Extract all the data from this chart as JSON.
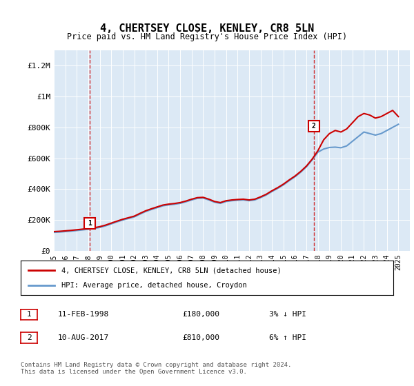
{
  "title": "4, CHERTSEY CLOSE, KENLEY, CR8 5LN",
  "subtitle": "Price paid vs. HM Land Registry's House Price Index (HPI)",
  "legend_line1": "4, CHERTSEY CLOSE, KENLEY, CR8 5LN (detached house)",
  "legend_line2": "HPI: Average price, detached house, Croydon",
  "transaction1_label": "1",
  "transaction1_date": "11-FEB-1998",
  "transaction1_price": "£180,000",
  "transaction1_hpi": "3% ↓ HPI",
  "transaction2_label": "2",
  "transaction2_date": "10-AUG-2017",
  "transaction2_price": "£810,000",
  "transaction2_hpi": "6% ↑ HPI",
  "footer": "Contains HM Land Registry data © Crown copyright and database right 2024.\nThis data is licensed under the Open Government Licence v3.0.",
  "ylim": [
    0,
    1300000
  ],
  "yticks": [
    0,
    200000,
    400000,
    600000,
    800000,
    1000000,
    1200000
  ],
  "ytick_labels": [
    "£0",
    "£200K",
    "£400K",
    "£600K",
    "£800K",
    "£1M",
    "£1.2M"
  ],
  "bg_color": "#dce9f5",
  "plot_bg": "#dce9f5",
  "red_color": "#cc0000",
  "blue_color": "#6699cc",
  "marker1_x": 1998.12,
  "marker2_x": 2017.62,
  "marker1_y": 180000,
  "marker2_y": 810000,
  "xmin": 1995,
  "xmax": 2026,
  "hpi_years": [
    1995,
    1995.5,
    1996,
    1996.5,
    1997,
    1997.5,
    1998,
    1998.5,
    1999,
    1999.5,
    2000,
    2000.5,
    2001,
    2001.5,
    2002,
    2002.5,
    2003,
    2003.5,
    2004,
    2004.5,
    2005,
    2005.5,
    2006,
    2006.5,
    2007,
    2007.5,
    2008,
    2008.5,
    2009,
    2009.5,
    2010,
    2010.5,
    2011,
    2011.5,
    2012,
    2012.5,
    2013,
    2013.5,
    2014,
    2014.5,
    2015,
    2015.5,
    2016,
    2016.5,
    2017,
    2017.5,
    2018,
    2018.5,
    2019,
    2019.5,
    2020,
    2020.5,
    2021,
    2021.5,
    2022,
    2022.5,
    2023,
    2023.5,
    2024,
    2024.5,
    2025
  ],
  "hpi_values": [
    120000,
    122000,
    125000,
    128000,
    132000,
    136000,
    140000,
    145000,
    152000,
    162000,
    175000,
    188000,
    200000,
    210000,
    220000,
    238000,
    255000,
    268000,
    280000,
    292000,
    298000,
    302000,
    308000,
    318000,
    330000,
    340000,
    342000,
    330000,
    315000,
    308000,
    320000,
    325000,
    328000,
    330000,
    325000,
    330000,
    345000,
    362000,
    385000,
    405000,
    428000,
    455000,
    480000,
    510000,
    545000,
    590000,
    640000,
    660000,
    670000,
    672000,
    668000,
    680000,
    710000,
    740000,
    770000,
    760000,
    750000,
    760000,
    780000,
    800000,
    820000
  ],
  "red_years": [
    1995,
    1995.5,
    1996,
    1996.5,
    1997,
    1997.5,
    1998,
    1998.5,
    1999,
    1999.5,
    2000,
    2000.5,
    2001,
    2001.5,
    2002,
    2002.5,
    2003,
    2003.5,
    2004,
    2004.5,
    2005,
    2005.5,
    2006,
    2006.5,
    2007,
    2007.5,
    2008,
    2008.5,
    2009,
    2009.5,
    2010,
    2010.5,
    2011,
    2011.5,
    2012,
    2012.5,
    2013,
    2013.5,
    2014,
    2014.5,
    2015,
    2015.5,
    2016,
    2016.5,
    2017,
    2017.5,
    2018,
    2018.5,
    2019,
    2019.5,
    2020,
    2020.5,
    2021,
    2021.5,
    2022,
    2022.5,
    2023,
    2023.5,
    2024,
    2024.5,
    2025
  ],
  "red_values": [
    125000,
    127000,
    130000,
    133000,
    137000,
    141000,
    145000,
    150000,
    157000,
    167000,
    180000,
    193000,
    205000,
    215000,
    225000,
    243000,
    260000,
    273000,
    285000,
    297000,
    303000,
    307000,
    313000,
    323000,
    335000,
    345000,
    347000,
    335000,
    320000,
    313000,
    325000,
    330000,
    333000,
    335000,
    330000,
    335000,
    350000,
    367000,
    390000,
    410000,
    433000,
    460000,
    485000,
    515000,
    550000,
    595000,
    650000,
    720000,
    760000,
    780000,
    770000,
    790000,
    830000,
    870000,
    890000,
    880000,
    860000,
    870000,
    890000,
    910000,
    870000
  ]
}
